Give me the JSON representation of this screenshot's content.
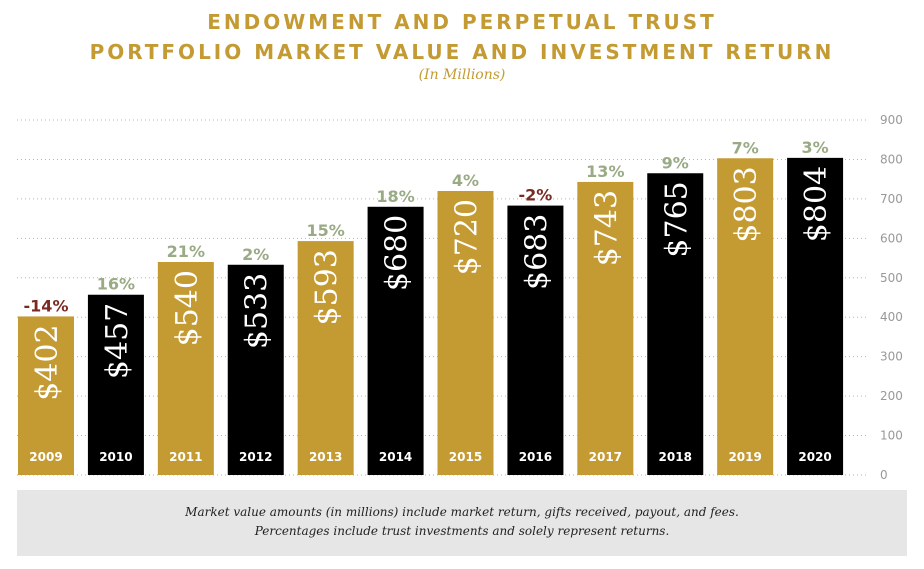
{
  "header": {
    "title_line1": "ENDOWMENT AND PERPETUAL TRUST",
    "title_line2": "PORTFOLIO MARKET VALUE AND INVESTMENT RETURN",
    "subtitle": "(In Millions)"
  },
  "chart_data": {
    "type": "bar",
    "categories": [
      "2009",
      "2010",
      "2011",
      "2012",
      "2013",
      "2014",
      "2015",
      "2016",
      "2017",
      "2018",
      "2019",
      "2020"
    ],
    "values": [
      402,
      457,
      540,
      533,
      593,
      680,
      720,
      683,
      743,
      765,
      803,
      804
    ],
    "value_labels": [
      "$402",
      "$457",
      "$540",
      "$533",
      "$593",
      "$680",
      "$720",
      "$683",
      "$743",
      "$765",
      "$803",
      "$804"
    ],
    "returns": [
      "-14%",
      "16%",
      "21%",
      "2%",
      "15%",
      "18%",
      "4%",
      "-2%",
      "13%",
      "9%",
      "7%",
      "3%"
    ],
    "ylim": [
      0,
      900
    ],
    "yticks": [
      0,
      100,
      200,
      300,
      400,
      500,
      600,
      700,
      800,
      900
    ],
    "ytick_labels": [
      "0",
      "100",
      "200",
      "300",
      "400",
      "500",
      "600",
      "700",
      "800",
      "900"
    ],
    "grid": true,
    "colors": {
      "gold": "#c49a32",
      "black": "#000000",
      "return_positive": "#9aaa84",
      "return_negative": "#7a2a22",
      "axis_text": "#999999"
    },
    "bar_colors": [
      "gold",
      "black",
      "gold",
      "black",
      "gold",
      "black",
      "gold",
      "black",
      "gold",
      "black",
      "gold",
      "black"
    ]
  },
  "footer": {
    "line1": "Market value amounts (in millions) include market return, gifts received, payout, and fees.",
    "line2": "Percentages include trust investments and solely represent returns."
  }
}
